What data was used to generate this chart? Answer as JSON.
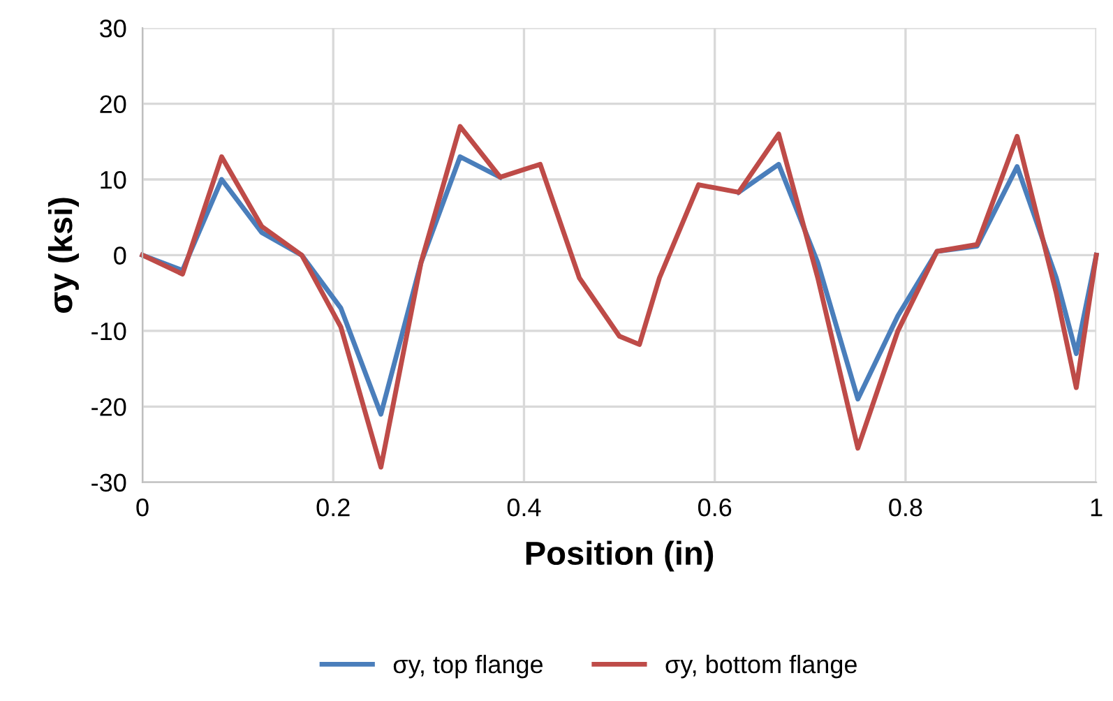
{
  "chart_data": {
    "type": "line",
    "xlabel": "Position (in)",
    "ylabel": "σy (ksi)",
    "x": [
      0,
      0.042,
      0.083,
      0.125,
      0.167,
      0.208,
      0.25,
      0.292,
      0.333,
      0.375,
      0.417,
      0.458,
      0.5,
      0.521,
      0.542,
      0.583,
      0.625,
      0.667,
      0.708,
      0.75,
      0.792,
      0.833,
      0.875,
      0.917,
      0.958,
      0.979,
      1
    ],
    "series": [
      {
        "name": "σy, top flange",
        "color": "#4a7ebb",
        "values": [
          0,
          -2,
          10,
          3,
          0,
          -7,
          -21,
          -1,
          13,
          10.3,
          null,
          null,
          null,
          null,
          null,
          null,
          8.3,
          12,
          -1,
          -19,
          -8,
          0.5,
          1.2,
          11.7,
          -3,
          -13,
          0
        ]
      },
      {
        "name": "σy, bottom flange",
        "color": "#be4b48",
        "values": [
          0,
          -2.5,
          13,
          3.8,
          0,
          -9.5,
          -28,
          -1,
          17,
          10.3,
          12,
          -3,
          -10.7,
          -11.8,
          -3,
          9.3,
          8.3,
          16,
          -3,
          -25.5,
          -10,
          0.5,
          1.4,
          15.7,
          -5,
          -17.5,
          0
        ]
      }
    ],
    "xlim": [
      0,
      1
    ],
    "xticks": [
      0,
      0.2,
      0.4,
      0.6,
      0.8,
      1
    ],
    "ylim": [
      -30,
      30
    ],
    "yticks": [
      -30,
      -20,
      -10,
      0,
      10,
      20,
      30
    ],
    "grid": true,
    "legend": "bottom",
    "marker": "none",
    "line_style": "solid"
  }
}
